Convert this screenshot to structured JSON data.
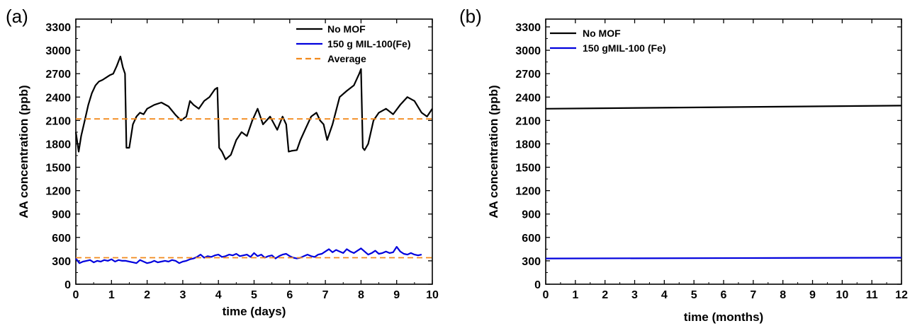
{
  "chart_data": [
    {
      "panel_label": "(a)",
      "type": "line",
      "xlabel": "time (days)",
      "ylabel": "AA concentration (ppb)",
      "xlim": [
        0,
        10
      ],
      "ylim": [
        0,
        3400
      ],
      "xticks": [
        0,
        1,
        2,
        3,
        4,
        5,
        6,
        7,
        8,
        9,
        10
      ],
      "yticks": [
        0,
        300,
        600,
        900,
        1200,
        1500,
        1800,
        2100,
        2400,
        2700,
        3000,
        3300
      ],
      "grid": false,
      "legend_position": "top-right",
      "series": [
        {
          "name": "No MOF",
          "color": "#000000",
          "style": "solid",
          "x": [
            0,
            0.08,
            0.15,
            0.25,
            0.35,
            0.45,
            0.55,
            0.65,
            0.75,
            0.85,
            0.95,
            1.05,
            1.15,
            1.25,
            1.32,
            1.38,
            1.42,
            1.5,
            1.6,
            1.7,
            1.8,
            1.9,
            2.0,
            2.2,
            2.4,
            2.6,
            2.8,
            2.95,
            3.1,
            3.2,
            3.3,
            3.45,
            3.6,
            3.75,
            3.9,
            3.97,
            4.02,
            4.1,
            4.2,
            4.35,
            4.5,
            4.65,
            4.8,
            4.95,
            5.1,
            5.25,
            5.45,
            5.65,
            5.8,
            5.9,
            5.97,
            6.05,
            6.2,
            6.3,
            6.45,
            6.6,
            6.75,
            6.85,
            6.95,
            7.05,
            7.2,
            7.4,
            7.6,
            7.8,
            7.95,
            8.0,
            8.05,
            8.1,
            8.2,
            8.35,
            8.5,
            8.7,
            8.9,
            9.1,
            9.3,
            9.5,
            9.7,
            9.85,
            10.0
          ],
          "values": [
            1950,
            1700,
            1900,
            2100,
            2300,
            2450,
            2550,
            2600,
            2620,
            2650,
            2680,
            2700,
            2800,
            2920,
            2780,
            2700,
            1750,
            1750,
            2050,
            2150,
            2200,
            2180,
            2250,
            2300,
            2330,
            2280,
            2170,
            2100,
            2150,
            2350,
            2300,
            2250,
            2350,
            2400,
            2500,
            2520,
            1750,
            1700,
            1600,
            1660,
            1850,
            1950,
            1900,
            2100,
            2250,
            2050,
            2150,
            1980,
            2150,
            2050,
            1700,
            1710,
            1720,
            1850,
            2000,
            2150,
            2200,
            2100,
            2050,
            1850,
            2050,
            2400,
            2480,
            2550,
            2700,
            2760,
            1750,
            1720,
            1800,
            2100,
            2200,
            2250,
            2180,
            2300,
            2400,
            2350,
            2200,
            2150,
            2250
          ]
        },
        {
          "name": "150 g MIL-100(Fe)",
          "color": "#0000dd",
          "style": "solid",
          "x": [
            0,
            0.1,
            0.2,
            0.3,
            0.4,
            0.5,
            0.6,
            0.7,
            0.8,
            0.9,
            1.0,
            1.1,
            1.2,
            1.3,
            1.4,
            1.5,
            1.6,
            1.7,
            1.8,
            1.9,
            2.0,
            2.1,
            2.2,
            2.3,
            2.4,
            2.5,
            2.6,
            2.7,
            2.8,
            2.9,
            3.0,
            3.1,
            3.2,
            3.3,
            3.4,
            3.5,
            3.6,
            3.7,
            3.8,
            3.9,
            4.0,
            4.1,
            4.2,
            4.3,
            4.4,
            4.5,
            4.6,
            4.7,
            4.8,
            4.9,
            5.0,
            5.1,
            5.2,
            5.3,
            5.4,
            5.5,
            5.6,
            5.7,
            5.8,
            5.9,
            6.0,
            6.1,
            6.2,
            6.3,
            6.4,
            6.5,
            6.6,
            6.7,
            6.8,
            6.9,
            7.0,
            7.1,
            7.2,
            7.3,
            7.4,
            7.5,
            7.6,
            7.7,
            7.8,
            7.9,
            8.0,
            8.1,
            8.2,
            8.3,
            8.4,
            8.5,
            8.6,
            8.7,
            8.8,
            8.9,
            9.0,
            9.1,
            9.2,
            9.3,
            9.4,
            9.5,
            9.6,
            9.7
          ],
          "values": [
            330,
            270,
            290,
            300,
            310,
            280,
            300,
            290,
            310,
            300,
            320,
            290,
            310,
            300,
            300,
            290,
            280,
            270,
            310,
            290,
            270,
            280,
            300,
            280,
            290,
            300,
            290,
            310,
            300,
            270,
            290,
            300,
            320,
            330,
            350,
            380,
            340,
            360,
            350,
            370,
            380,
            350,
            360,
            380,
            370,
            390,
            360,
            370,
            380,
            350,
            400,
            360,
            380,
            340,
            360,
            370,
            330,
            360,
            380,
            390,
            360,
            340,
            330,
            340,
            360,
            380,
            360,
            350,
            380,
            390,
            420,
            450,
            410,
            440,
            420,
            400,
            450,
            420,
            400,
            430,
            460,
            420,
            380,
            400,
            430,
            390,
            400,
            420,
            400,
            410,
            480,
            420,
            390,
            380,
            400,
            380,
            370,
            380
          ]
        },
        {
          "name": "Average",
          "color": "#f28a1d",
          "style": "dashed",
          "x": [
            0,
            10
          ],
          "values": [
            2120,
            2120
          ]
        },
        {
          "name": "",
          "color": "#f28a1d",
          "style": "dashed",
          "x": [
            0,
            10
          ],
          "values": [
            340,
            340
          ]
        }
      ]
    },
    {
      "panel_label": "(b)",
      "type": "line",
      "xlabel": "time (months)",
      "ylabel": "AA concentration (ppb)",
      "xlim": [
        0,
        12
      ],
      "ylim": [
        0,
        3400
      ],
      "xticks": [
        0,
        1,
        2,
        3,
        4,
        5,
        6,
        7,
        8,
        9,
        10,
        11,
        12
      ],
      "yticks": [
        0,
        300,
        600,
        900,
        1200,
        1500,
        1800,
        2100,
        2400,
        2700,
        3000,
        3300
      ],
      "grid": false,
      "legend_position": "top-left",
      "series": [
        {
          "name": "No MOF",
          "color": "#000000",
          "style": "solid",
          "x": [
            0,
            12
          ],
          "values": [
            2250,
            2290
          ]
        },
        {
          "name": "150 gMIL-100 (Fe)",
          "color": "#0000dd",
          "style": "solid",
          "x": [
            0,
            12
          ],
          "values": [
            330,
            340
          ]
        }
      ]
    }
  ]
}
